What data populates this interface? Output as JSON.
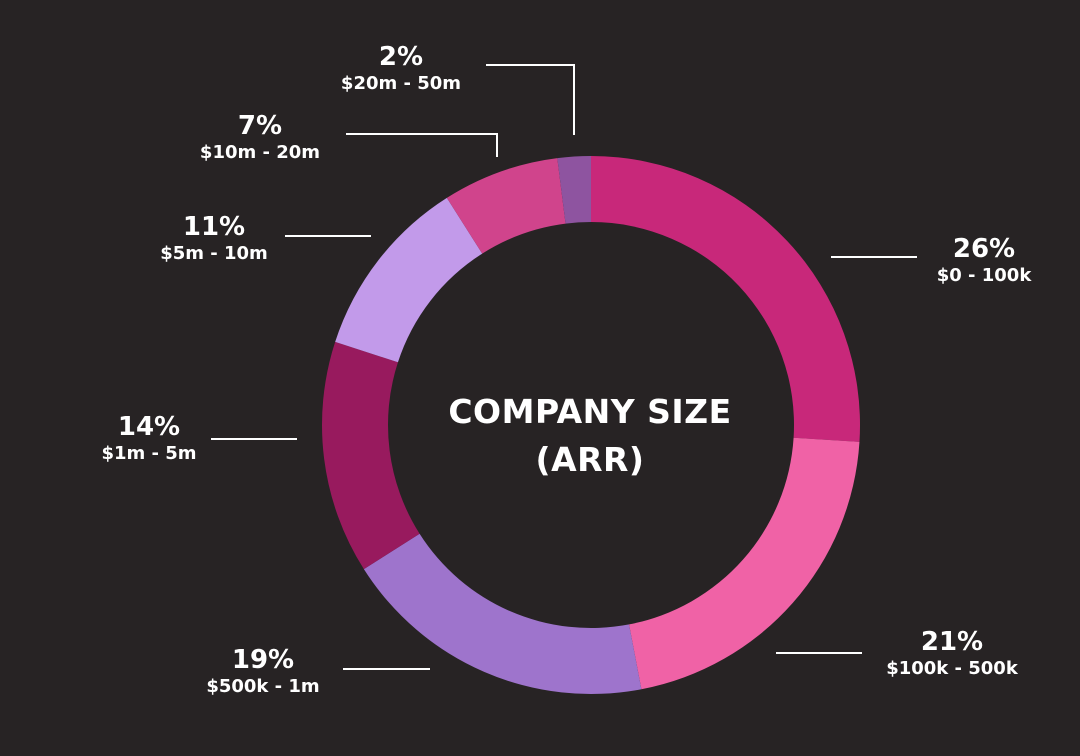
{
  "colors": {
    "background": "#272324",
    "leader_line": "#ffffff",
    "text": "#ffffff"
  },
  "chart_data": {
    "type": "pie",
    "style": "donut",
    "center_title": [
      "COMPANY SIZE",
      "(ARR)"
    ],
    "unit": "%",
    "slices": [
      {
        "category": "$0 - 100k",
        "value": 26,
        "label": "26%",
        "color": "#c8287a"
      },
      {
        "category": "$100k - 500k",
        "value": 21,
        "label": "21%",
        "color": "#f062a6"
      },
      {
        "category": "$500k - 1m",
        "value": 19,
        "label": "19%",
        "color": "#9e74cc"
      },
      {
        "category": "$1m - 5m",
        "value": 14,
        "label": "14%",
        "color": "#981a5e"
      },
      {
        "category": "$5m - 10m",
        "value": 11,
        "label": "11%",
        "color": "#c29aea"
      },
      {
        "category": "$10m - 20m",
        "value": 7,
        "label": "7%",
        "color": "#d0448c"
      },
      {
        "category": "$20m - 50m",
        "value": 2,
        "label": "2%",
        "color": "#8e54a0"
      }
    ]
  }
}
